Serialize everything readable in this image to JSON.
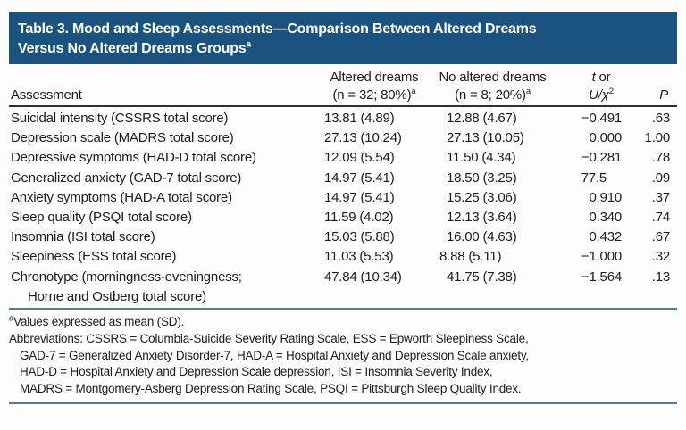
{
  "title": {
    "line1": "Table 3. Mood and Sleep Assessments—Comparison Between Altered Dreams",
    "line2": "Versus No Altered Dreams Groups",
    "sup": "a"
  },
  "header": {
    "assessment": "Assessment",
    "altered": {
      "line1": "Altered dreams",
      "line2": "(n = 32; 80%)",
      "sup": "a"
    },
    "no_altered": {
      "line1": "No altered dreams",
      "line2": "(n = 8; 20%)",
      "sup": "a"
    },
    "stat": {
      "line1_italic": "t",
      "line1_rest": " or",
      "line2_italic": "U/χ",
      "line2_sup": "2"
    },
    "p": "P"
  },
  "rows": [
    {
      "assessment": "Suicidal intensity (CSSRS total score)",
      "altered": "13.81 (4.89)",
      "no_altered": "12.88 (4.67)",
      "stat": "−0.491",
      "p": ".63"
    },
    {
      "assessment": "Depression scale (MADRS total score)",
      "altered": "27.13 (10.24)",
      "no_altered": "27.13 (10.05)",
      "stat": "0.000",
      "p": "1.00"
    },
    {
      "assessment": "Depressive symptoms (HAD-D total score)",
      "altered": "12.09 (5.54)",
      "no_altered": "11.50 (4.34)",
      "stat": "−0.281",
      "p": ".78"
    },
    {
      "assessment": "Generalized anxiety (GAD-7 total score)",
      "altered": "14.97 (5.41)",
      "no_altered": "18.50 (3.25)",
      "stat": "77.5",
      "p": ".09"
    },
    {
      "assessment": "Anxiety symptoms (HAD-A total score)",
      "altered": "14.97 (5.41)",
      "no_altered": "15.25 (3.06)",
      "stat": "0.910",
      "p": ".37"
    },
    {
      "assessment": "Sleep quality (PSQI total score)",
      "altered": "11.59 (4.02)",
      "no_altered": "12.13 (3.64)",
      "stat": "0.340",
      "p": ".74"
    },
    {
      "assessment": "Insomnia (ISI total score)",
      "altered": "15.03 (5.88)",
      "no_altered": "16.00 (4.63)",
      "stat": "0.432",
      "p": ".67"
    },
    {
      "assessment": "Sleepiness (ESS total score)",
      "altered": "11.03 (5.53)",
      "no_altered": "8.88 (5.11)",
      "stat": "−1.000",
      "p": ".32"
    },
    {
      "assessment": "Chronotype (morningness-eveningness;",
      "assessment_cont": "Horne and Ostberg total score)",
      "altered": "47.84 (10.34)",
      "no_altered": "41.75 (7.38)",
      "stat": "−1.564",
      "p": ".13"
    }
  ],
  "footnotes": {
    "sup": "a",
    "mean_note": "Values expressed as mean (SD).",
    "abbr_line1": "Abbreviations: CSSRS = Columbia-Suicide Severity Rating Scale, ESS = Epworth Sleepiness Scale,",
    "abbr_line2": "GAD-7 = Generalized Anxiety Disorder-7, HAD-A = Hospital Anxiety and Depression Scale anxiety,",
    "abbr_line3": "HAD-D = Hospital Anxiety and Depression Scale depression, ISI = Insomnia Severity Index,",
    "abbr_line4": "MADRS = Montgomery-Asberg Depression Rating Scale, PSQI = Pittsburgh Sleep Quality Index."
  },
  "colors": {
    "title_bar": "#1B5380",
    "title_text": "#FFFFFF",
    "body_text": "#1C1C1C",
    "header_rule": "#2E2E2E",
    "blue_rule": "#4A7CA5"
  }
}
